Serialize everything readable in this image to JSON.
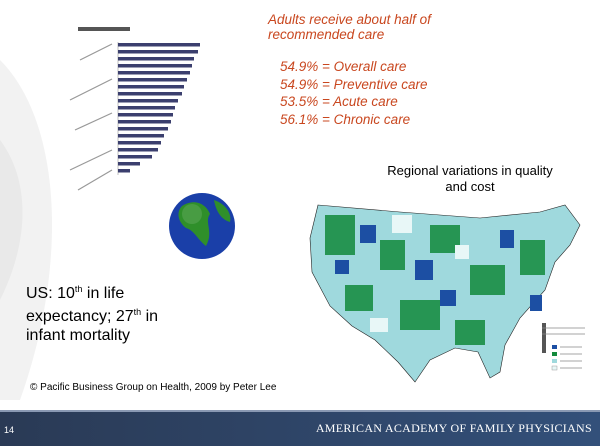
{
  "slide": {
    "care_heading": [
      "Adults receive about half of",
      "recommended care"
    ],
    "care_items": [
      "54.9% = Overall care",
      "54.9% = Preventive care",
      "53.5% = Acute care",
      "56.1% = Chronic care"
    ],
    "map_caption": [
      "Regional variations in quality",
      "and cost"
    ],
    "us_lines": [
      [
        "US: 10",
        "th",
        " in life"
      ],
      [
        "expectancy; 27",
        "th",
        " in"
      ],
      [
        "infant mortality"
      ]
    ],
    "credit": "© Pacific Business Group on Health, 2009 by Peter Lee",
    "page_number": "14",
    "footer": "AMERICAN ACADEMY OF FAMILY PHYSICIANS"
  }
}
